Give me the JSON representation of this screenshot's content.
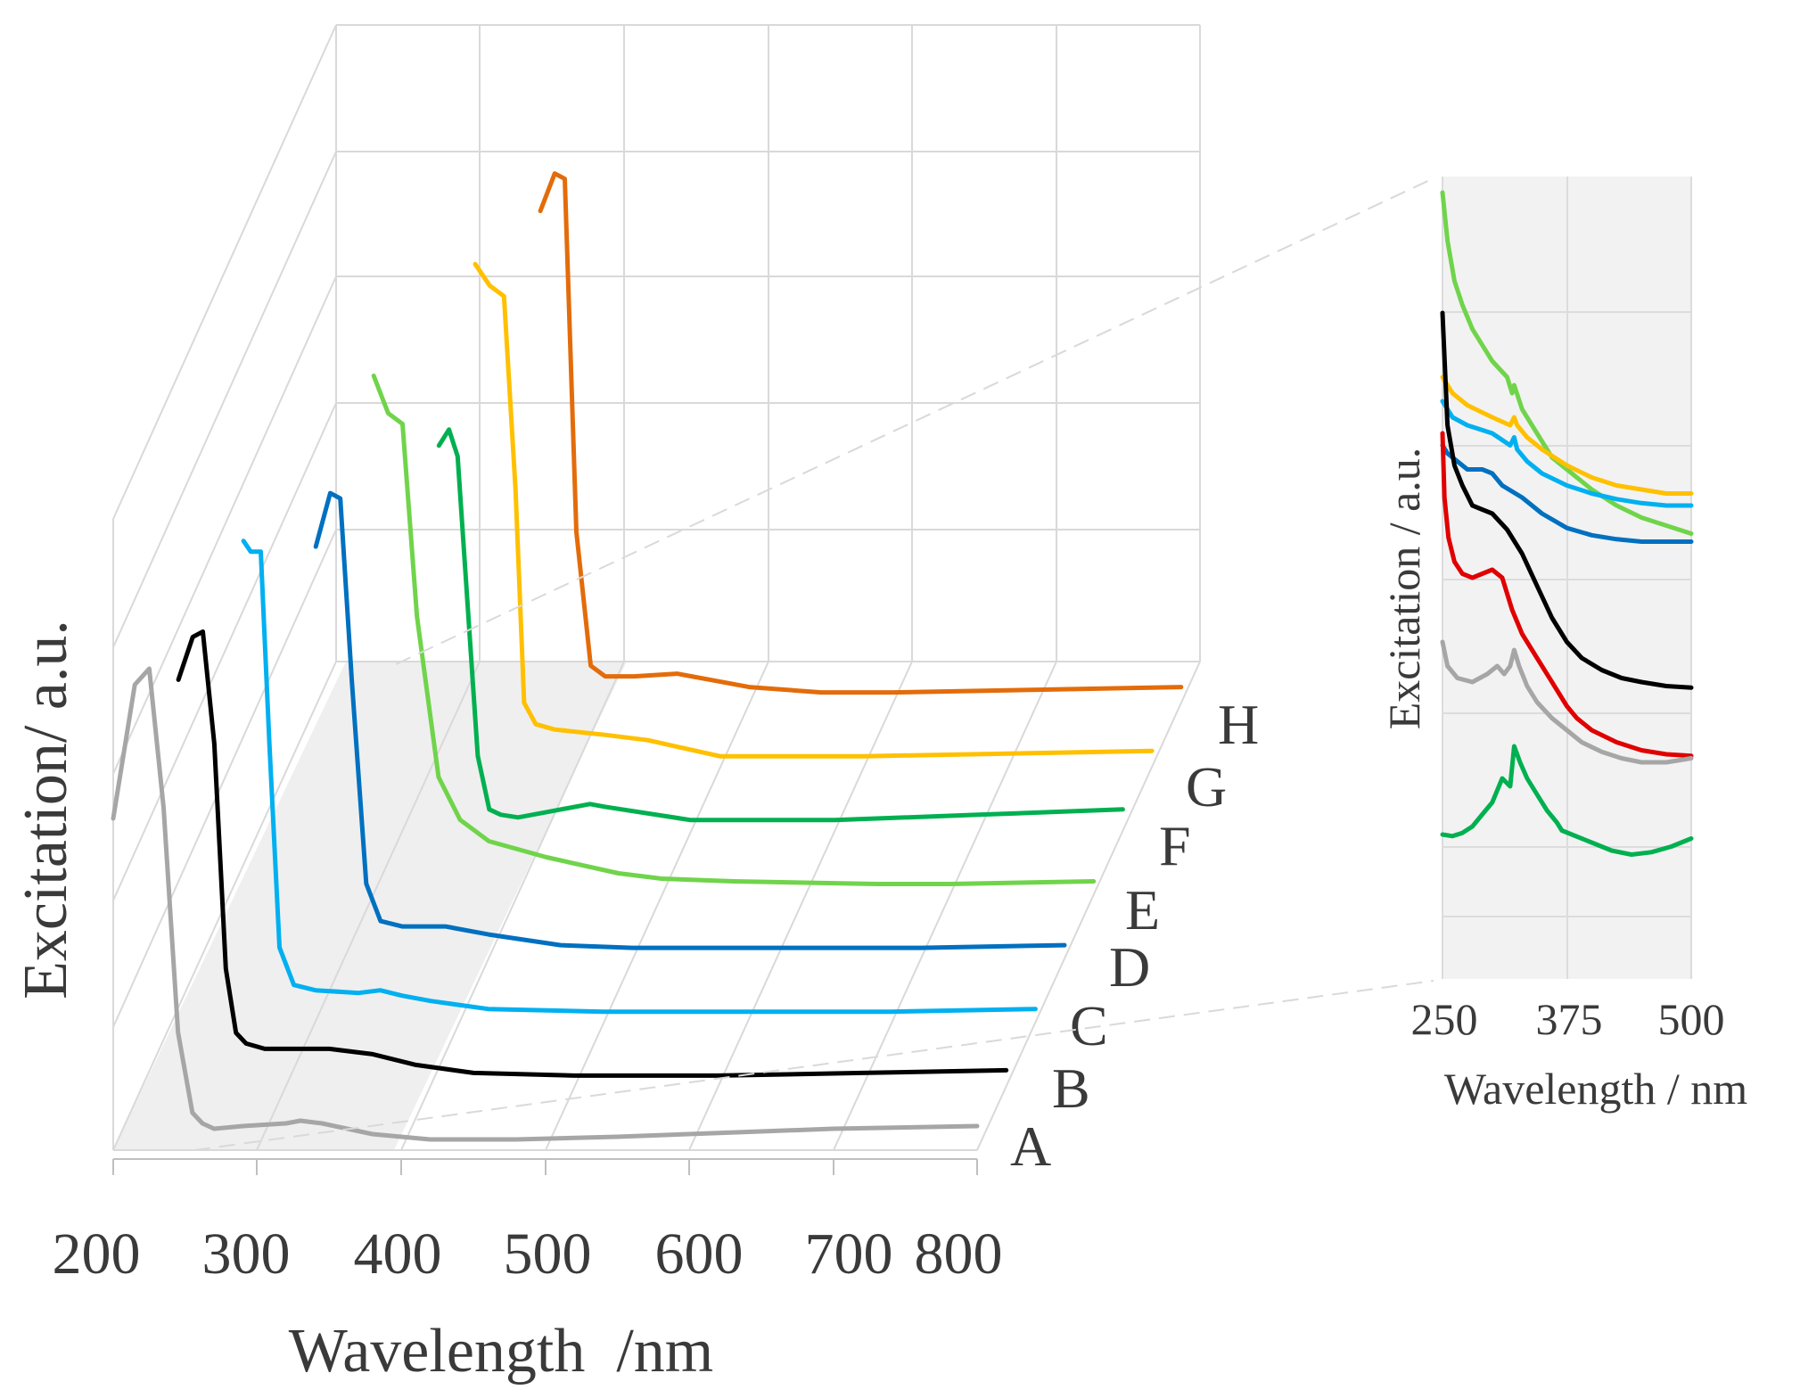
{
  "chart_data": [
    {
      "type": "line",
      "subtype": "3d-waterfall",
      "title": "",
      "xlabel": "Wavelength  /nm",
      "ylabel": "Excitation/ a.u.",
      "x_ticks": [
        "200",
        "300",
        "400",
        "500",
        "600",
        "700",
        "800"
      ],
      "xlim": [
        200,
        800
      ],
      "grid": true,
      "series": [
        {
          "name": "A",
          "color": "#a6a6a6",
          "x": [
            200,
            215,
            225,
            235,
            245,
            255,
            262,
            270,
            290,
            320,
            330,
            345,
            380,
            420,
            480,
            550,
            650,
            700,
            800
          ],
          "y": [
            0.6,
            0.85,
            0.88,
            0.62,
            0.2,
            0.05,
            0.03,
            0.02,
            0.025,
            0.03,
            0.035,
            0.03,
            0.01,
            0.0,
            0.0,
            0.005,
            0.015,
            0.02,
            0.025
          ]
        },
        {
          "name": "B",
          "color": "#000000",
          "x": [
            225,
            235,
            242,
            250,
            258,
            265,
            272,
            285,
            300,
            330,
            360,
            390,
            430,
            500,
            600,
            700,
            800
          ],
          "y": [
            0.74,
            0.82,
            0.83,
            0.62,
            0.2,
            0.08,
            0.06,
            0.05,
            0.05,
            0.05,
            0.04,
            0.02,
            0.005,
            0.0,
            0.0,
            0.005,
            0.01
          ]
        },
        {
          "name": "C",
          "color": "#00b0f0",
          "x": [
            250,
            255,
            262,
            268,
            275,
            285,
            300,
            330,
            345,
            360,
            380,
            420,
            500,
            600,
            700,
            800
          ],
          "y": [
            0.88,
            0.86,
            0.86,
            0.5,
            0.12,
            0.05,
            0.04,
            0.035,
            0.04,
            0.03,
            0.02,
            0.005,
            0.0,
            0.0,
            0.0,
            0.005
          ]
        },
        {
          "name": "D",
          "color": "#0070c0",
          "x": [
            280,
            290,
            297,
            305,
            315,
            325,
            340,
            370,
            400,
            450,
            500,
            600,
            700,
            800
          ],
          "y": [
            0.75,
            0.85,
            0.84,
            0.5,
            0.12,
            0.05,
            0.04,
            0.04,
            0.025,
            0.005,
            0.0,
            0.0,
            0.0,
            0.005
          ]
        },
        {
          "name": "E",
          "color": "#70d44b",
          "x": [
            300,
            310,
            320,
            330,
            345,
            360,
            380,
            420,
            470,
            500,
            550,
            650,
            700,
            800
          ],
          "y": [
            0.95,
            0.88,
            0.86,
            0.5,
            0.2,
            0.12,
            0.08,
            0.05,
            0.02,
            0.01,
            0.005,
            0.0,
            0.0,
            0.005
          ]
        },
        {
          "name": "F",
          "color": "#00b050",
          "x": [
            325,
            332,
            338,
            345,
            352,
            360,
            368,
            380,
            400,
            430,
            440,
            500,
            600,
            700,
            800
          ],
          "y": [
            0.7,
            0.73,
            0.68,
            0.4,
            0.12,
            0.02,
            0.01,
            0.005,
            0.015,
            0.03,
            0.025,
            0.0,
            0.0,
            0.01,
            0.02
          ]
        },
        {
          "name": "G",
          "color": "#ffc000",
          "x": [
            330,
            340,
            350,
            358,
            364,
            372,
            385,
            420,
            450,
            500,
            600,
            700,
            800
          ],
          "y": [
            0.92,
            0.88,
            0.86,
            0.5,
            0.1,
            0.06,
            0.05,
            0.04,
            0.03,
            0.0,
            0.0,
            0.005,
            0.01
          ]
        },
        {
          "name": "H",
          "color": "#e36c0a",
          "x": [
            355,
            365,
            372,
            380,
            390,
            400,
            420,
            450,
            480,
            500,
            550,
            600,
            700,
            800
          ],
          "y": [
            0.9,
            0.97,
            0.96,
            0.3,
            0.05,
            0.03,
            0.03,
            0.035,
            0.02,
            0.01,
            0.0,
            0.0,
            0.005,
            0.01
          ]
        }
      ]
    },
    {
      "type": "line",
      "subtype": "inset",
      "title": "",
      "xlabel": "Wavelength / nm",
      "ylabel": "Excitation / a.u.",
      "x_ticks": [
        "250",
        "375",
        "500"
      ],
      "xlim": [
        250,
        500
      ],
      "ylim": [
        0,
        1
      ],
      "grid": true,
      "series": [
        {
          "color": "#70d44b",
          "x": [
            250,
            255,
            262,
            270,
            280,
            290,
            300,
            315,
            320,
            322,
            330,
            345,
            360,
            370,
            380,
            400,
            425,
            450,
            475,
            500
          ],
          "y": [
            0.98,
            0.92,
            0.87,
            0.84,
            0.81,
            0.79,
            0.77,
            0.75,
            0.73,
            0.74,
            0.71,
            0.68,
            0.65,
            0.64,
            0.63,
            0.61,
            0.59,
            0.575,
            0.565,
            0.555
          ]
        },
        {
          "color": "#ffc000",
          "x": [
            250,
            260,
            275,
            300,
            318,
            322,
            325,
            335,
            350,
            375,
            400,
            425,
            450,
            475,
            500
          ],
          "y": [
            0.75,
            0.73,
            0.715,
            0.7,
            0.69,
            0.7,
            0.69,
            0.675,
            0.66,
            0.64,
            0.625,
            0.615,
            0.61,
            0.605,
            0.605
          ]
        },
        {
          "color": "#00b0f0",
          "x": [
            250,
            260,
            275,
            300,
            318,
            322,
            325,
            335,
            350,
            375,
            400,
            425,
            450,
            475,
            500
          ],
          "y": [
            0.72,
            0.7,
            0.69,
            0.68,
            0.665,
            0.675,
            0.66,
            0.645,
            0.63,
            0.615,
            0.605,
            0.598,
            0.593,
            0.59,
            0.59
          ]
        },
        {
          "color": "#0070c0",
          "x": [
            250,
            255,
            265,
            275,
            290,
            300,
            310,
            330,
            350,
            375,
            400,
            425,
            450,
            475,
            500
          ],
          "y": [
            0.665,
            0.655,
            0.645,
            0.635,
            0.635,
            0.63,
            0.615,
            0.6,
            0.58,
            0.562,
            0.553,
            0.548,
            0.545,
            0.545,
            0.545
          ]
        },
        {
          "color": "#000000",
          "x": [
            250,
            255,
            262,
            270,
            280,
            290,
            300,
            315,
            330,
            345,
            360,
            375,
            390,
            410,
            430,
            450,
            475,
            500
          ],
          "y": [
            0.83,
            0.69,
            0.64,
            0.615,
            0.59,
            0.585,
            0.58,
            0.56,
            0.53,
            0.49,
            0.45,
            0.42,
            0.4,
            0.385,
            0.375,
            0.37,
            0.365,
            0.363
          ]
        },
        {
          "color": "#e00000",
          "x": [
            250,
            252,
            256,
            262,
            270,
            280,
            290,
            300,
            310,
            320,
            330,
            345,
            360,
            375,
            385,
            400,
            425,
            450,
            475,
            500
          ],
          "y": [
            0.68,
            0.6,
            0.55,
            0.52,
            0.505,
            0.5,
            0.505,
            0.51,
            0.5,
            0.46,
            0.43,
            0.4,
            0.37,
            0.34,
            0.325,
            0.31,
            0.295,
            0.285,
            0.28,
            0.278
          ]
        },
        {
          "color": "#a6a6a6",
          "x": [
            250,
            255,
            265,
            280,
            295,
            305,
            312,
            318,
            322,
            327,
            335,
            345,
            360,
            375,
            390,
            410,
            430,
            450,
            475,
            500
          ],
          "y": [
            0.42,
            0.39,
            0.375,
            0.37,
            0.38,
            0.39,
            0.38,
            0.39,
            0.41,
            0.39,
            0.365,
            0.345,
            0.325,
            0.31,
            0.295,
            0.283,
            0.275,
            0.27,
            0.27,
            0.275
          ]
        },
        {
          "color": "#00b050",
          "x": [
            250,
            260,
            270,
            280,
            290,
            300,
            310,
            318,
            322,
            328,
            335,
            345,
            355,
            365,
            370,
            380,
            400,
            420,
            440,
            460,
            480,
            500
          ],
          "y": [
            0.18,
            0.178,
            0.182,
            0.19,
            0.205,
            0.22,
            0.25,
            0.24,
            0.29,
            0.27,
            0.25,
            0.23,
            0.21,
            0.195,
            0.185,
            0.18,
            0.17,
            0.16,
            0.155,
            0.158,
            0.165,
            0.175
          ]
        }
      ]
    }
  ]
}
